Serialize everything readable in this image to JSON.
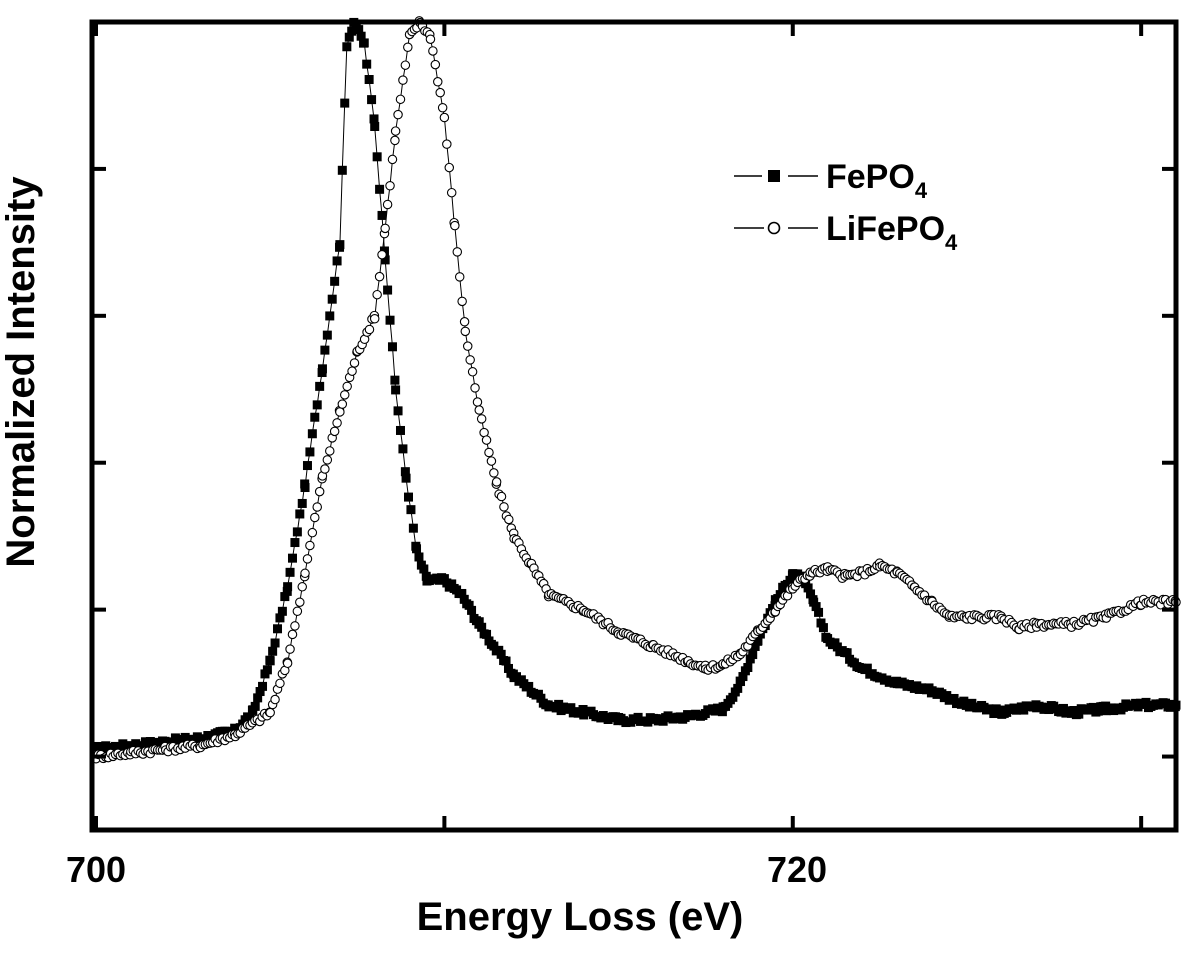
{
  "chart_data": {
    "type": "scatter",
    "xlabel": "Energy Loss (eV)",
    "ylabel": "Normalized Intensity",
    "xlim": [
      700,
      731
    ],
    "ylim": [
      -0.1,
      1.0
    ],
    "x_ticks": [
      700,
      720
    ],
    "x_tick_labels": [
      "700",
      "720"
    ],
    "x_minor_ticks": [
      710,
      730
    ],
    "y_ticks": [
      0.0,
      0.2,
      0.4,
      0.6,
      0.8
    ],
    "y_tick_labels": false,
    "grid": false,
    "legend_position": "top-right",
    "series": [
      {
        "name": "FePO4",
        "name_base": "FePO",
        "name_sub": "4",
        "marker": "filled-square",
        "color": "#000000",
        "points": [
          [
            700.0,
            0.01
          ],
          [
            701.0,
            0.015
          ],
          [
            702.0,
            0.02
          ],
          [
            703.0,
            0.025
          ],
          [
            704.0,
            0.035
          ],
          [
            704.5,
            0.06
          ],
          [
            705.0,
            0.13
          ],
          [
            705.5,
            0.23
          ],
          [
            706.0,
            0.37
          ],
          [
            706.5,
            0.53
          ],
          [
            707.0,
            0.7
          ],
          [
            707.2,
            0.97
          ],
          [
            707.4,
            1.0
          ],
          [
            707.7,
            0.97
          ],
          [
            708.0,
            0.86
          ],
          [
            708.3,
            0.68
          ],
          [
            708.6,
            0.5
          ],
          [
            708.9,
            0.38
          ],
          [
            709.2,
            0.28
          ],
          [
            709.5,
            0.24
          ],
          [
            710.0,
            0.24
          ],
          [
            710.5,
            0.22
          ],
          [
            711.0,
            0.18
          ],
          [
            712.0,
            0.11
          ],
          [
            713.0,
            0.07
          ],
          [
            714.0,
            0.06
          ],
          [
            715.0,
            0.05
          ],
          [
            716.0,
            0.05
          ],
          [
            717.0,
            0.055
          ],
          [
            718.0,
            0.065
          ],
          [
            718.5,
            0.1
          ],
          [
            719.0,
            0.16
          ],
          [
            719.5,
            0.21
          ],
          [
            720.0,
            0.25
          ],
          [
            720.3,
            0.24
          ],
          [
            720.6,
            0.21
          ],
          [
            721.0,
            0.16
          ],
          [
            722.0,
            0.12
          ],
          [
            723.0,
            0.1
          ],
          [
            724.0,
            0.09
          ],
          [
            725.0,
            0.07
          ],
          [
            726.0,
            0.06
          ],
          [
            727.0,
            0.07
          ],
          [
            728.0,
            0.06
          ],
          [
            729.0,
            0.065
          ],
          [
            730.0,
            0.07
          ],
          [
            731.0,
            0.07
          ]
        ]
      },
      {
        "name": "LiFePO4",
        "name_base": "LiFePO",
        "name_sub": "4",
        "marker": "open-circle",
        "color": "#000000",
        "points": [
          [
            700.0,
            0.0
          ],
          [
            701.0,
            0.005
          ],
          [
            702.0,
            0.01
          ],
          [
            703.0,
            0.015
          ],
          [
            704.0,
            0.03
          ],
          [
            705.0,
            0.06
          ],
          [
            705.5,
            0.13
          ],
          [
            706.0,
            0.25
          ],
          [
            706.5,
            0.38
          ],
          [
            707.0,
            0.47
          ],
          [
            707.5,
            0.55
          ],
          [
            708.0,
            0.6
          ],
          [
            708.3,
            0.72
          ],
          [
            708.6,
            0.85
          ],
          [
            709.0,
            0.98
          ],
          [
            709.3,
            1.0
          ],
          [
            709.6,
            0.98
          ],
          [
            710.0,
            0.87
          ],
          [
            710.3,
            0.72
          ],
          [
            710.6,
            0.58
          ],
          [
            711.0,
            0.47
          ],
          [
            711.5,
            0.37
          ],
          [
            712.0,
            0.3
          ],
          [
            712.5,
            0.26
          ],
          [
            713.0,
            0.22
          ],
          [
            714.0,
            0.2
          ],
          [
            715.0,
            0.17
          ],
          [
            716.0,
            0.15
          ],
          [
            717.0,
            0.13
          ],
          [
            717.5,
            0.12
          ],
          [
            718.0,
            0.125
          ],
          [
            718.5,
            0.14
          ],
          [
            719.0,
            0.17
          ],
          [
            719.5,
            0.2
          ],
          [
            720.0,
            0.23
          ],
          [
            720.5,
            0.25
          ],
          [
            721.0,
            0.255
          ],
          [
            721.5,
            0.245
          ],
          [
            722.0,
            0.25
          ],
          [
            722.5,
            0.26
          ],
          [
            723.0,
            0.25
          ],
          [
            723.5,
            0.23
          ],
          [
            724.0,
            0.21
          ],
          [
            724.5,
            0.19
          ],
          [
            725.0,
            0.19
          ],
          [
            726.0,
            0.19
          ],
          [
            726.5,
            0.175
          ],
          [
            727.0,
            0.18
          ],
          [
            728.0,
            0.18
          ],
          [
            729.0,
            0.19
          ],
          [
            730.0,
            0.21
          ],
          [
            731.0,
            0.21
          ]
        ]
      }
    ]
  }
}
